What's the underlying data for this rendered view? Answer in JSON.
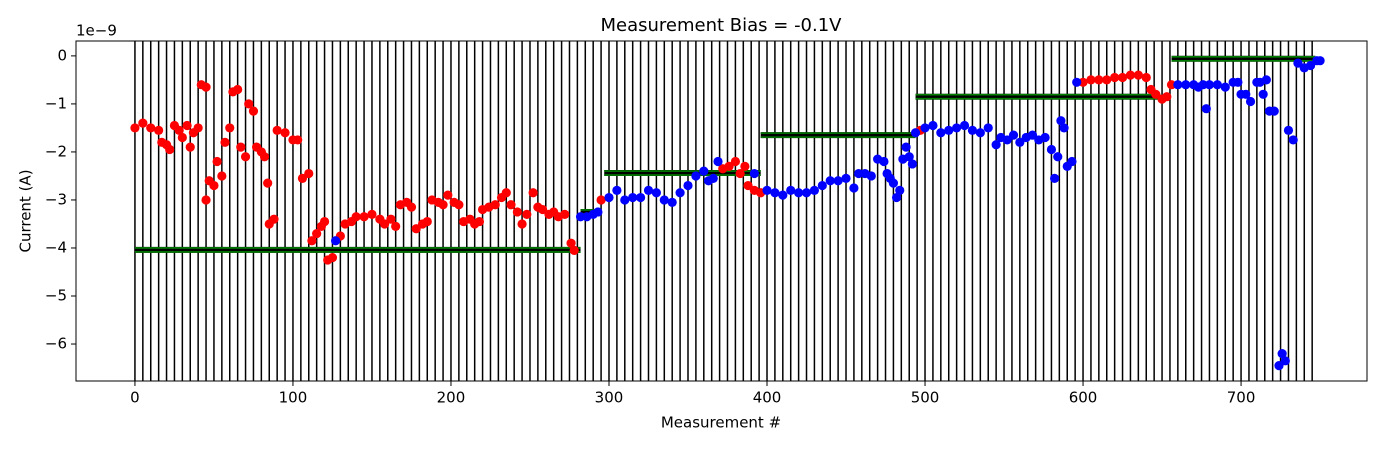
{
  "chart_data": {
    "type": "scatter",
    "title": "Measurement Bias = -0.1V",
    "xlabel": "Measurement #",
    "ylabel": "Current (A)",
    "offset_label": "1e−9",
    "xlim": [
      -37.3,
      779.7
    ],
    "ylim": [
      -6.77,
      0.31
    ],
    "xticks": [
      0,
      100,
      200,
      300,
      400,
      500,
      600,
      700
    ],
    "yticks": [
      0,
      {
        "value": -1,
        "label": "−1"
      },
      {
        "value": -2,
        "label": "−2"
      },
      {
        "value": -3,
        "label": "−3"
      },
      {
        "value": -4,
        "label": "−4"
      },
      {
        "value": -5,
        "label": "−5"
      },
      {
        "value": -6,
        "label": "−6"
      }
    ],
    "vlines": {
      "color": "#000000",
      "x": [
        0,
        5,
        10,
        15,
        20,
        25,
        30,
        35,
        40,
        45,
        50,
        55,
        60,
        65,
        70,
        75,
        80,
        85,
        90,
        95,
        100,
        105,
        110,
        115,
        120,
        125,
        130,
        135,
        140,
        145,
        150,
        155,
        160,
        165,
        170,
        175,
        180,
        185,
        190,
        195,
        200,
        205,
        210,
        215,
        220,
        225,
        230,
        235,
        240,
        245,
        250,
        255,
        260,
        265,
        270,
        275,
        280,
        285,
        290,
        295,
        300,
        305,
        310,
        315,
        320,
        325,
        330,
        335,
        340,
        345,
        350,
        355,
        360,
        365,
        370,
        375,
        380,
        385,
        390,
        395,
        400,
        405,
        410,
        415,
        420,
        425,
        430,
        435,
        440,
        445,
        450,
        455,
        460,
        465,
        470,
        475,
        480,
        485,
        490,
        495,
        500,
        505,
        510,
        515,
        520,
        525,
        530,
        535,
        540,
        545,
        550,
        555,
        560,
        565,
        570,
        575,
        580,
        585,
        590,
        595,
        600,
        605,
        610,
        615,
        620,
        625,
        630,
        635,
        640,
        645,
        650,
        655,
        660,
        665,
        670,
        675,
        680,
        685,
        690,
        695,
        700,
        705,
        710,
        715,
        720,
        725,
        730,
        735,
        740,
        745
      ]
    },
    "hlines": {
      "color": "#008000",
      "segments": [
        {
          "x": [
            0,
            282
          ],
          "y": -4.04
        },
        {
          "x": [
            282,
            294
          ],
          "y": -3.25
        },
        {
          "x": [
            297,
            396
          ],
          "y": -2.44
        },
        {
          "x": [
            396,
            494
          ],
          "y": -1.65
        },
        {
          "x": [
            494,
            649
          ],
          "y": -0.85
        },
        {
          "x": [
            656,
            747
          ],
          "y": -0.06
        }
      ]
    },
    "series": [
      {
        "color": "#ff0000",
        "x": [
          0,
          5,
          10,
          15,
          17,
          20,
          22,
          25,
          28,
          30,
          33,
          35,
          37,
          40,
          42,
          45,
          45,
          47,
          50,
          52,
          55,
          57,
          60,
          62,
          65,
          67,
          70,
          72,
          75,
          77,
          80,
          82,
          84,
          85,
          88,
          90,
          95,
          100,
          103,
          106,
          110,
          112,
          115,
          118,
          120,
          122,
          125,
          130,
          133,
          137,
          140,
          145,
          150,
          155,
          158,
          162,
          165,
          168,
          172,
          175,
          178,
          182,
          185,
          188,
          192,
          195,
          198,
          202,
          205,
          208,
          212,
          215,
          218,
          220,
          224,
          228,
          232,
          235,
          238,
          242,
          245,
          248,
          252,
          255,
          258,
          262,
          265,
          268,
          272,
          276,
          278,
          295,
          372,
          376,
          380,
          383,
          386,
          388,
          392,
          396,
          497,
          600,
          605,
          610,
          615,
          620,
          625,
          630,
          635,
          640,
          643,
          646,
          650,
          653,
          656
        ],
        "values": [
          -1.5,
          -1.4,
          -1.5,
          -1.55,
          -1.8,
          -1.85,
          -1.95,
          -1.45,
          -1.55,
          -1.7,
          -1.45,
          -1.9,
          -1.6,
          -1.5,
          -0.6,
          -0.65,
          -3.0,
          -2.6,
          -2.7,
          -2.2,
          -2.5,
          -1.8,
          -1.5,
          -0.75,
          -0.7,
          -1.9,
          -2.1,
          -1.0,
          -1.15,
          -1.9,
          -2.0,
          -2.1,
          -2.65,
          -3.5,
          -3.4,
          -1.55,
          -1.6,
          -1.75,
          -1.75,
          -2.55,
          -2.45,
          -3.85,
          -3.7,
          -3.55,
          -3.45,
          -4.25,
          -4.2,
          -3.75,
          -3.5,
          -3.45,
          -3.35,
          -3.35,
          -3.3,
          -3.4,
          -3.5,
          -3.4,
          -3.55,
          -3.1,
          -3.05,
          -3.15,
          -3.6,
          -3.5,
          -3.45,
          -3.0,
          -3.05,
          -3.1,
          -2.9,
          -3.05,
          -3.1,
          -3.45,
          -3.4,
          -3.5,
          -3.45,
          -3.2,
          -3.15,
          -3.1,
          -2.95,
          -2.85,
          -3.1,
          -3.25,
          -3.5,
          -3.3,
          -2.85,
          -3.15,
          -3.2,
          -3.3,
          -3.25,
          -3.35,
          -3.3,
          -3.9,
          -4.05,
          -3.0,
          -2.35,
          -2.3,
          -2.2,
          -2.45,
          -2.3,
          -2.7,
          -2.8,
          -2.85,
          -1.55,
          -0.55,
          -0.5,
          -0.5,
          -0.5,
          -0.45,
          -0.45,
          -0.4,
          -0.4,
          -0.45,
          -0.7,
          -0.8,
          -0.9,
          -0.85,
          -0.6
        ]
      },
      {
        "color": "#0000ff",
        "x": [
          127,
          282,
          286,
          290,
          293,
          300,
          305,
          310,
          315,
          320,
          325,
          330,
          335,
          340,
          345,
          350,
          355,
          360,
          363,
          366,
          369,
          392,
          400,
          405,
          410,
          415,
          420,
          425,
          430,
          435,
          440,
          445,
          450,
          455,
          458,
          462,
          466,
          470,
          474,
          476,
          478,
          480,
          482,
          484,
          486,
          488,
          490,
          492,
          494,
          500,
          505,
          510,
          515,
          520,
          525,
          530,
          535,
          540,
          545,
          548,
          552,
          556,
          560,
          564,
          568,
          572,
          576,
          580,
          582,
          584,
          586,
          588,
          590,
          593,
          596,
          660,
          665,
          670,
          673,
          676,
          678,
          680,
          685,
          690,
          695,
          698,
          700,
          703,
          706,
          710,
          712,
          714,
          716,
          718,
          721,
          724,
          726,
          728,
          730,
          733,
          736,
          740,
          744,
          748,
          750
        ],
        "values": [
          -3.85,
          -3.35,
          -3.35,
          -3.3,
          -3.25,
          -2.95,
          -2.8,
          -3.0,
          -2.95,
          -2.95,
          -2.8,
          -2.85,
          -3.0,
          -3.05,
          -2.85,
          -2.7,
          -2.5,
          -2.4,
          -2.6,
          -2.55,
          -2.2,
          -2.45,
          -2.8,
          -2.85,
          -2.9,
          -2.8,
          -2.85,
          -2.85,
          -2.8,
          -2.7,
          -2.6,
          -2.6,
          -2.55,
          -2.75,
          -2.45,
          -2.45,
          -2.5,
          -2.15,
          -2.2,
          -2.45,
          -2.55,
          -2.65,
          -2.95,
          -2.8,
          -2.15,
          -1.9,
          -2.1,
          -2.25,
          -1.6,
          -1.5,
          -1.45,
          -1.6,
          -1.55,
          -1.5,
          -1.45,
          -1.55,
          -1.6,
          -1.5,
          -1.85,
          -1.7,
          -1.75,
          -1.65,
          -1.8,
          -1.7,
          -1.65,
          -1.75,
          -1.7,
          -1.95,
          -2.55,
          -2.1,
          -1.35,
          -1.5,
          -2.3,
          -2.2,
          -0.55,
          -0.6,
          -0.6,
          -0.6,
          -0.65,
          -0.6,
          -1.1,
          -0.6,
          -0.6,
          -0.65,
          -0.55,
          -0.55,
          -0.8,
          -0.8,
          -0.95,
          -0.55,
          -0.55,
          -0.8,
          -0.5,
          -1.15,
          -1.15,
          -6.45,
          -6.2,
          -6.35,
          -1.55,
          -1.75,
          -0.15,
          -0.25,
          -0.2,
          -0.1,
          -0.1
        ]
      }
    ]
  }
}
